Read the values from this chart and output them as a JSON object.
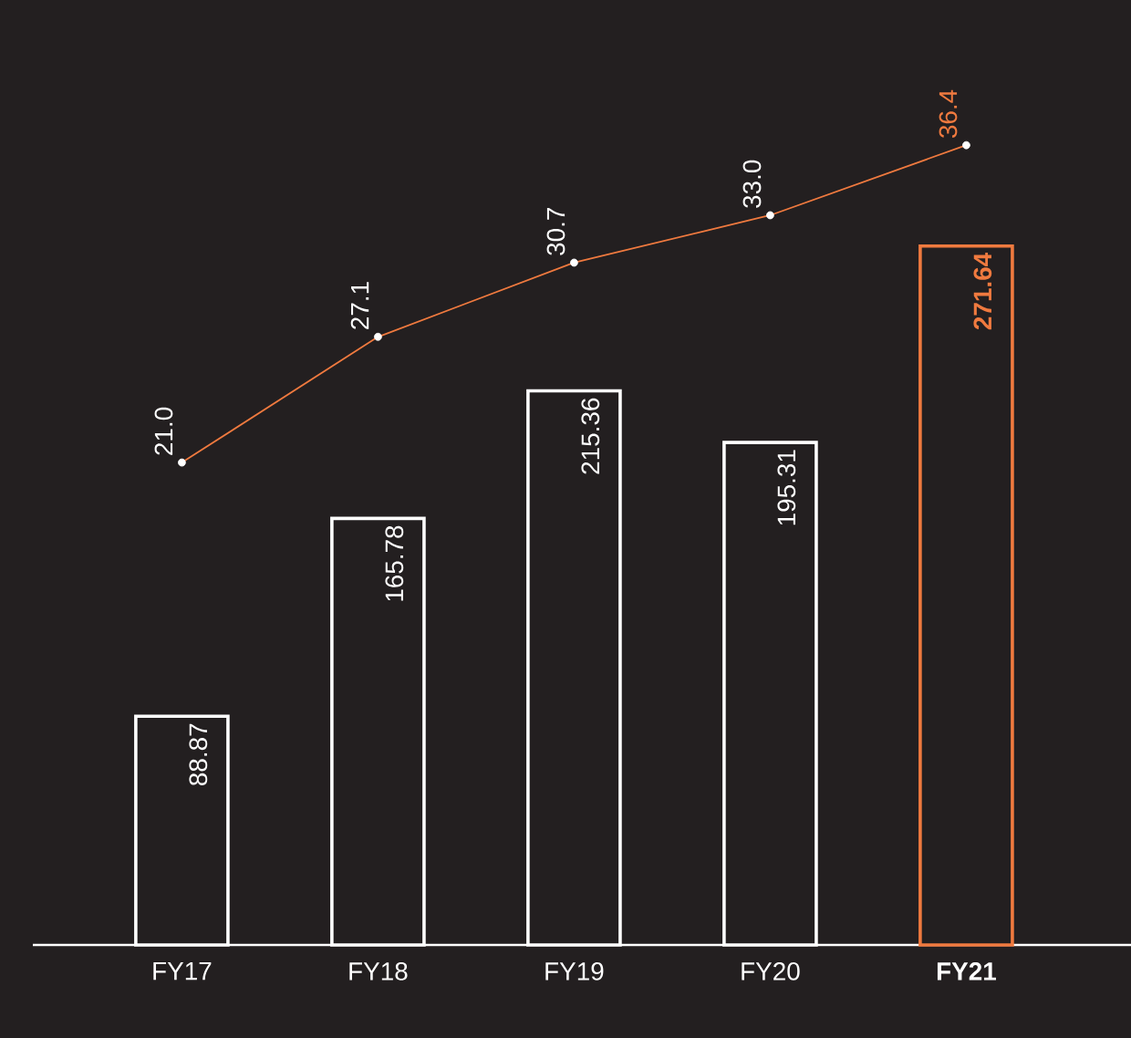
{
  "chart_data": {
    "type": "bar",
    "categories": [
      "FY17",
      "FY18",
      "FY19",
      "FY20",
      "FY21"
    ],
    "series": [
      {
        "colors": [
          "#ffffff",
          "#ffffff",
          "#ffffff",
          "#ffffff",
          "#f07a3f"
        ],
        "values": [
          88.87,
          165.78,
          215.36,
          195.31,
          271.64
        ]
      },
      {
        "type": "line",
        "axis": "y2",
        "color": "#f07a3f",
        "values": [
          21.0,
          27.1,
          30.7,
          33.0,
          36.4
        ],
        "value_labels": [
          "21.0",
          "27.1",
          "30.7",
          "33.0",
          "36.4"
        ]
      }
    ],
    "marker": "circle",
    "data_labels": true
  }
}
